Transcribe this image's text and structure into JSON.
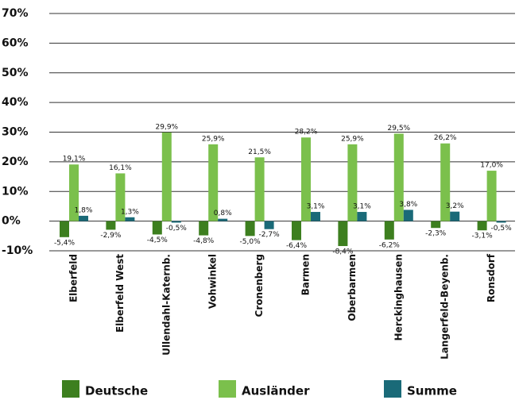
{
  "chart_data": {
    "type": "bar",
    "categories": [
      "Elberfeld",
      "Elberfeld West",
      "Ullendahl-Katernb.",
      "Vohwinkel",
      "Cronenberg",
      "Barmen",
      "Oberbarmen",
      "Herckinghausen",
      "Langerfeld-Beyenb.",
      "Ronsdorf"
    ],
    "series": [
      {
        "name": "Deutsche",
        "color": "#3d7f1f",
        "values": [
          -5.4,
          -2.9,
          -4.5,
          -4.8,
          -5.0,
          -6.4,
          -8.4,
          -6.2,
          -2.3,
          -3.1
        ],
        "value_labels": [
          "-5,4%",
          "-2,9%",
          "-4,5%",
          "-4,8%",
          "-5,0%",
          "-6,4%",
          "-8,4%",
          "-6,2%",
          "-2,3%",
          "-3,1%"
        ]
      },
      {
        "name": "Ausländer",
        "color": "#7bc04c",
        "values": [
          19.1,
          16.1,
          29.9,
          25.9,
          21.5,
          28.2,
          25.9,
          29.5,
          26.2,
          17.0
        ],
        "value_labels": [
          "19,1%",
          "16,1%",
          "29,9%",
          "25,9%",
          "21,5%",
          "28,2%",
          "25,9%",
          "29,5%",
          "26,2%",
          "17,0%"
        ]
      },
      {
        "name": "Summe",
        "color": "#1a6a78",
        "values": [
          1.8,
          1.3,
          -0.5,
          0.8,
          -2.7,
          3.1,
          3.1,
          3.8,
          3.2,
          -0.5
        ],
        "value_labels": [
          "1,8%",
          "1,3%",
          "-0,5%",
          "0,8%",
          "-2,7%",
          "3,1%",
          "3,1%",
          "3,8%",
          "3,2%",
          "-0,5%"
        ]
      }
    ],
    "ylim": [
      -10,
      70
    ],
    "yticks": [
      {
        "value": -10,
        "label": "-10%"
      },
      {
        "value": 0,
        "label": "0%"
      },
      {
        "value": 10,
        "label": "10%"
      },
      {
        "value": 20,
        "label": "20%"
      },
      {
        "value": 30,
        "label": "30%"
      },
      {
        "value": 40,
        "label": "40%"
      },
      {
        "value": 50,
        "label": "50%"
      },
      {
        "value": 60,
        "label": "60%"
      },
      {
        "value": 70,
        "label": "70%"
      }
    ],
    "grid": true,
    "legend": "bottom"
  }
}
